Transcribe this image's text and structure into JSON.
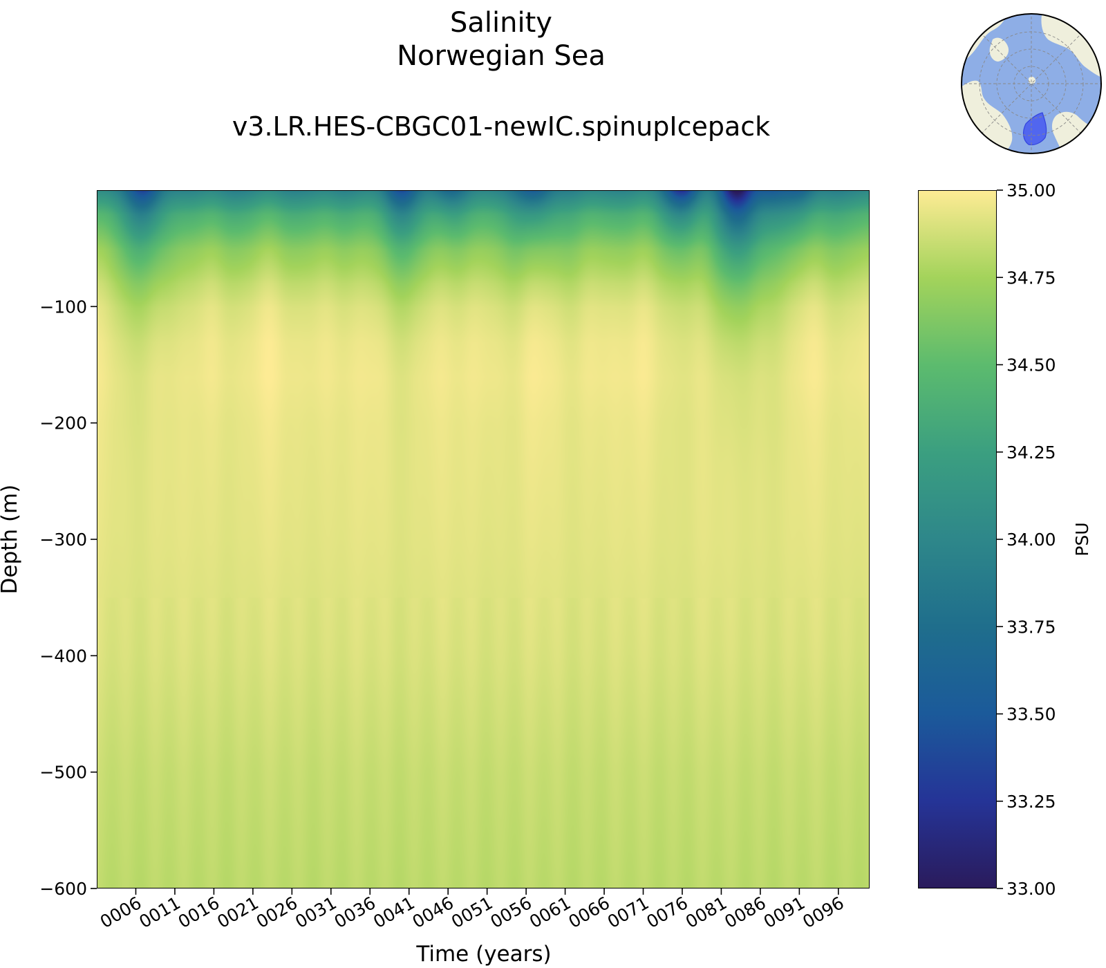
{
  "header": {
    "title_line1": "Salinity",
    "title_line2": "Norwegian Sea",
    "subtitle": "v3.LR.HES-CBGC01-newIC.spinupIcepack"
  },
  "chart_data": {
    "type": "heatmap",
    "title": "Salinity\nNorwegian Sea",
    "subtitle": "v3.LR.HES-CBGC01-newIC.spinupIcepack",
    "xlabel": "Time (years)",
    "ylabel": "Depth (m)",
    "xlim": [
      1,
      100
    ],
    "ylim": [
      -600,
      0
    ],
    "x_ticks": [
      6,
      11,
      16,
      21,
      26,
      31,
      36,
      41,
      46,
      51,
      56,
      61,
      66,
      71,
      76,
      81,
      86,
      91,
      96
    ],
    "x_tick_labels": [
      "0006",
      "0011",
      "0016",
      "0021",
      "0026",
      "0031",
      "0036",
      "0041",
      "0046",
      "0051",
      "0056",
      "0061",
      "0066",
      "0071",
      "0076",
      "0081",
      "0086",
      "0091",
      "0096"
    ],
    "y_ticks": [
      -100,
      -200,
      -300,
      -400,
      -500,
      -600
    ],
    "y_tick_labels": [
      "−100",
      "−200",
      "−300",
      "−400",
      "−500",
      "−600"
    ],
    "colormap": "haline (dark blue to light yellow)",
    "colorbar": {
      "label": "PSU",
      "range": [
        33.0,
        35.0
      ],
      "ticks": [
        33.0,
        33.25,
        33.5,
        33.75,
        34.0,
        34.25,
        34.5,
        34.75,
        35.0
      ],
      "tick_labels": [
        "33.00",
        "33.25",
        "33.50",
        "33.75",
        "34.00",
        "34.25",
        "34.50",
        "34.75",
        "35.00"
      ],
      "colors": [
        "#2a1b5c",
        "#253497",
        "#1b5a9a",
        "#1f6e8c",
        "#2e878a",
        "#3b9f80",
        "#5cbb6e",
        "#a3d35b",
        "#fdeb94"
      ]
    },
    "profile_depths": [
      0,
      -20,
      -50,
      -80,
      -100,
      -130,
      -160,
      -200,
      -300,
      -400,
      -500,
      -600
    ],
    "profile_salinity_typical": [
      34.0,
      34.4,
      34.7,
      34.85,
      34.92,
      34.96,
      34.97,
      34.95,
      34.93,
      34.9,
      34.85,
      34.82
    ],
    "freshening_events": [
      {
        "year": 7,
        "min_salinity": 33.4,
        "depth_extent": -70
      },
      {
        "year": 40,
        "min_salinity": 33.5,
        "depth_extent": -60
      },
      {
        "year": 46,
        "min_salinity": 33.7,
        "depth_extent": -30
      },
      {
        "year": 57,
        "min_salinity": 33.5,
        "depth_extent": -40
      },
      {
        "year": 76,
        "min_salinity": 33.3,
        "depth_extent": -30
      },
      {
        "year": 83,
        "min_salinity": 33.0,
        "depth_extent": -70
      },
      {
        "year": 87,
        "min_salinity": 33.6,
        "depth_extent": -35
      },
      {
        "year": 91,
        "min_salinity": 33.6,
        "depth_extent": -35
      }
    ],
    "grid": false
  },
  "inset": {
    "icon": "north-polar-region-map-icon",
    "region_color": "#4a5ef0",
    "ocean_color": "#8eaee6",
    "land_color": "#efefdc"
  }
}
